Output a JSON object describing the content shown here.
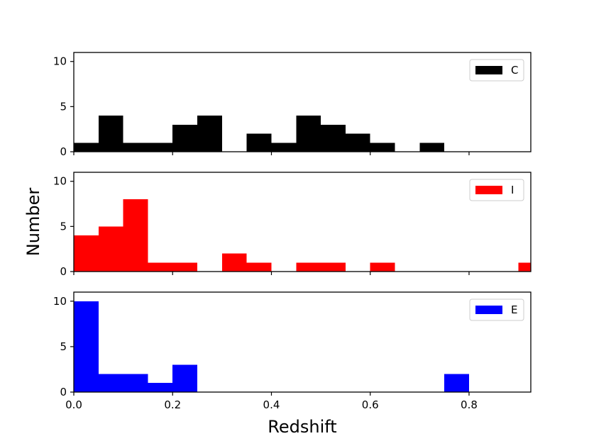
{
  "chart_data": {
    "type": "bar",
    "xlabel": "Redshift",
    "ylabel": "Number",
    "xlim": [
      0.0,
      0.925
    ],
    "ylim": [
      0,
      11
    ],
    "xticks": [
      "0.0",
      "0.2",
      "0.4",
      "0.6",
      "0.8"
    ],
    "yticks": [
      "0",
      "5",
      "10"
    ],
    "bin_width": 0.05,
    "legend_position": "upper-right",
    "panels": [
      {
        "name": "C",
        "color": "#000000",
        "bin_starts": [
          0.0,
          0.05,
          0.1,
          0.15,
          0.2,
          0.25,
          0.3,
          0.35,
          0.4,
          0.45,
          0.5,
          0.55,
          0.6,
          0.65,
          0.7,
          0.75,
          0.8,
          0.85,
          0.9
        ],
        "counts": [
          1,
          4,
          1,
          1,
          3,
          4,
          0,
          2,
          1,
          4,
          3,
          2,
          1,
          0,
          1,
          0,
          0,
          0,
          0
        ]
      },
      {
        "name": "I",
        "color": "#ff0000",
        "bin_starts": [
          0.0,
          0.05,
          0.1,
          0.15,
          0.2,
          0.25,
          0.3,
          0.35,
          0.4,
          0.45,
          0.5,
          0.55,
          0.6,
          0.65,
          0.7,
          0.75,
          0.8,
          0.85,
          0.9
        ],
        "counts": [
          4,
          5,
          8,
          1,
          1,
          0,
          2,
          1,
          0,
          1,
          1,
          0,
          1,
          0,
          0,
          0,
          0,
          0,
          1
        ]
      },
      {
        "name": "E",
        "color": "#0000ff",
        "bin_starts": [
          0.0,
          0.05,
          0.1,
          0.15,
          0.2,
          0.25,
          0.3,
          0.35,
          0.4,
          0.45,
          0.5,
          0.55,
          0.6,
          0.65,
          0.7,
          0.75,
          0.8,
          0.85,
          0.9
        ],
        "counts": [
          10,
          2,
          2,
          1,
          3,
          0,
          0,
          0,
          0,
          0,
          0,
          0,
          0,
          0,
          0,
          2,
          0,
          0,
          0
        ]
      }
    ]
  }
}
